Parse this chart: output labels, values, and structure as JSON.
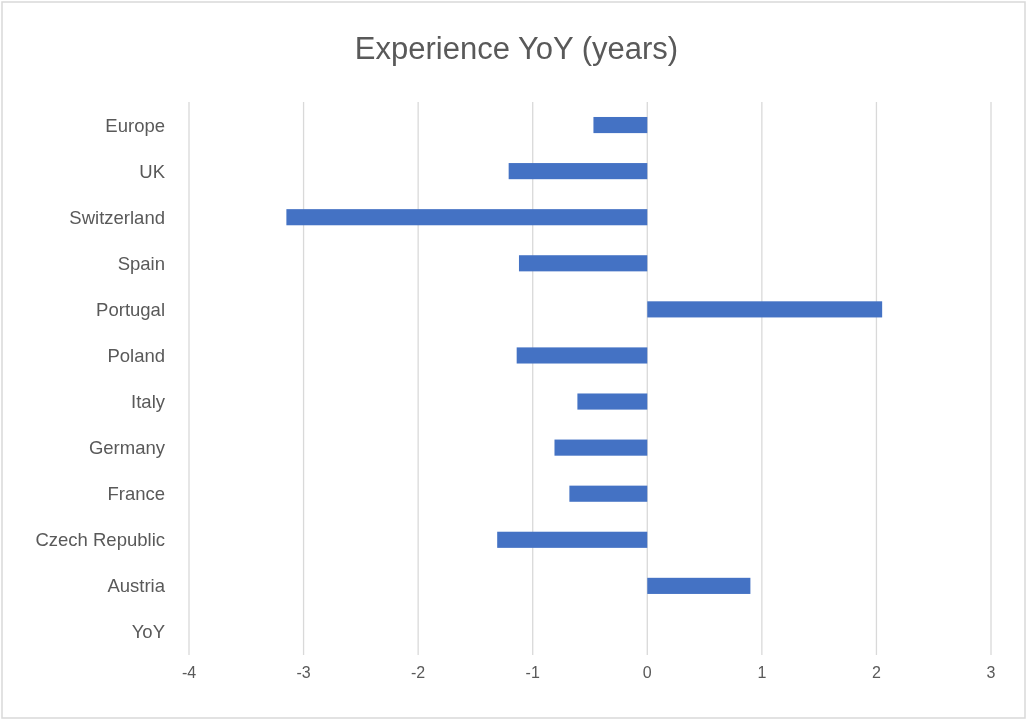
{
  "chart_data": {
    "type": "bar",
    "orientation": "horizontal",
    "title": "Experience YoY (years)",
    "categories": [
      "Europe",
      "UK",
      "Switzerland",
      "Spain",
      "Portugal",
      "Poland",
      "Italy",
      "Germany",
      "France",
      "Czech Republic",
      "Austria",
      "YoY"
    ],
    "values": [
      -0.47,
      -1.21,
      -3.15,
      -1.12,
      2.05,
      -1.14,
      -0.61,
      -0.81,
      -0.68,
      -1.31,
      0.9,
      null
    ],
    "color": "#4472c4",
    "xlim": [
      -4,
      3
    ],
    "xticks": [
      -4,
      -3,
      -2,
      -1,
      0,
      1,
      2,
      3
    ],
    "grid": "x"
  }
}
